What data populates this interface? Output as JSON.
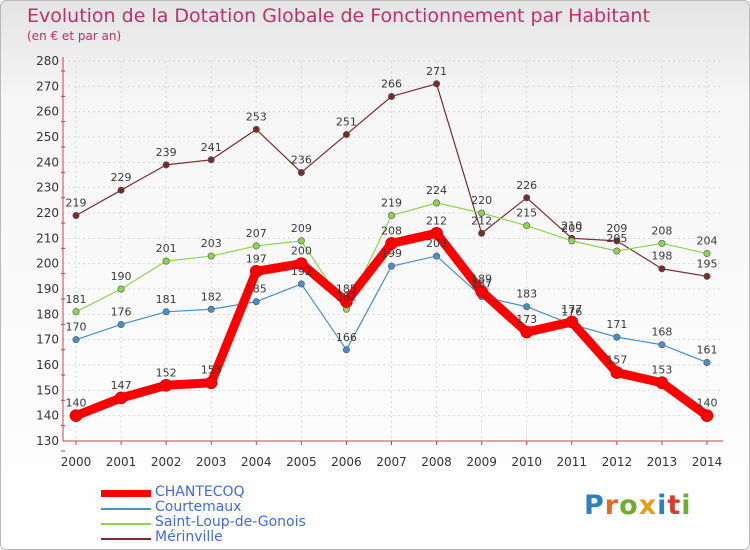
{
  "chart_data": {
    "type": "line",
    "title": "Evolution de la Dotation Globale de Fonctionnement par Habitant",
    "subtitle": "(en € et par an)",
    "x": [
      "2000",
      "2001",
      "2002",
      "2003",
      "2004",
      "2005",
      "2006",
      "2007",
      "2008",
      "2009",
      "2010",
      "2011",
      "2012",
      "2013",
      "2014"
    ],
    "ylim": [
      130,
      280
    ],
    "yticks": [
      130,
      140,
      150,
      160,
      170,
      180,
      190,
      200,
      210,
      220,
      230,
      240,
      250,
      260,
      270,
      280
    ],
    "grid": true,
    "legend_position": "bottom-left",
    "series": [
      {
        "name": "CHANTECOQ",
        "color": "#ff0000",
        "values": [
          140,
          147,
          152,
          153,
          197,
          200,
          185,
          208,
          212,
          189,
          173,
          177,
          157,
          153,
          140
        ]
      },
      {
        "name": "Courtemaux",
        "color": "#4a8ec8",
        "values": [
          170,
          176,
          181,
          182,
          185,
          192,
          166,
          199,
          203,
          187,
          183,
          176,
          171,
          168,
          161
        ]
      },
      {
        "name": "Saint-Loup-de-Gonois",
        "color": "#8ed34f",
        "values": [
          181,
          190,
          201,
          203,
          207,
          209,
          182,
          219,
          224,
          220,
          215,
          209,
          205,
          208,
          204
        ]
      },
      {
        "name": "Mérinville",
        "color": "#7a2b2b",
        "values": [
          219,
          229,
          239,
          241,
          253,
          236,
          251,
          266,
          271,
          212,
          226,
          210,
          209,
          198,
          195
        ]
      }
    ]
  },
  "logo": {
    "letters": [
      "P",
      "r",
      "o",
      "x",
      "i",
      "t",
      "i"
    ]
  }
}
